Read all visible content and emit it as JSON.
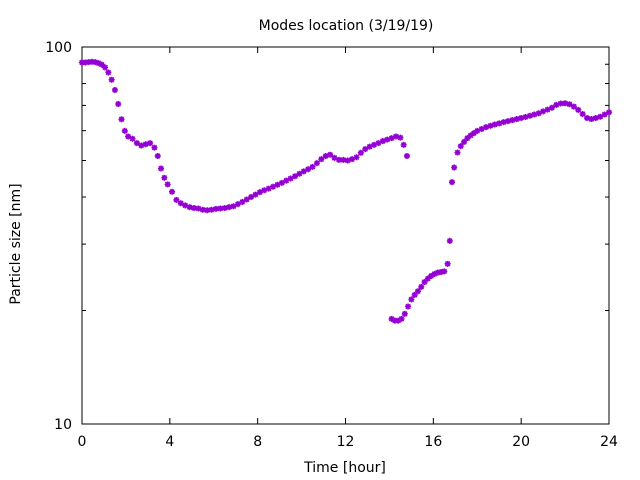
{
  "chart_data": {
    "type": "scatter",
    "title": "Modes location (3/19/19)",
    "xlabel": "Time [hour]",
    "ylabel": "Particle size [nm]",
    "xlim": [
      0,
      24
    ],
    "ylim": [
      10,
      100
    ],
    "y_scale": "log",
    "x_ticks": [
      0,
      4,
      8,
      12,
      16,
      20,
      24
    ],
    "x_tick_labels": [
      "0",
      "4",
      "8",
      "12",
      "16",
      "20",
      "24"
    ],
    "y_ticks": [
      10,
      100
    ],
    "y_tick_labels": [
      "10",
      "100"
    ],
    "grid": false,
    "marker_color": "#9400d3",
    "series": [
      {
        "points": [
          [
            0.0,
            91.0
          ],
          [
            0.15,
            91.0
          ],
          [
            0.3,
            91.2
          ],
          [
            0.45,
            91.4
          ],
          [
            0.6,
            91.2
          ],
          [
            0.75,
            90.6
          ],
          [
            0.9,
            89.8
          ],
          [
            1.05,
            88.3
          ],
          [
            1.2,
            85.6
          ],
          [
            1.35,
            81.9
          ],
          [
            1.5,
            76.9
          ],
          [
            1.65,
            70.6
          ],
          [
            1.8,
            64.3
          ],
          [
            1.95,
            59.9
          ],
          [
            2.1,
            57.9
          ],
          [
            2.3,
            57.1
          ],
          [
            2.5,
            55.6
          ],
          [
            2.7,
            54.8
          ],
          [
            2.9,
            55.2
          ],
          [
            3.1,
            55.6
          ],
          [
            3.3,
            54.1
          ],
          [
            3.45,
            51.4
          ],
          [
            3.6,
            47.6
          ],
          [
            3.75,
            45.0
          ],
          [
            3.9,
            43.2
          ],
          [
            4.1,
            41.3
          ],
          [
            4.3,
            39.3
          ],
          [
            4.5,
            38.5
          ],
          [
            4.7,
            38.0
          ],
          [
            4.9,
            37.6
          ],
          [
            5.1,
            37.4
          ],
          [
            5.3,
            37.3
          ],
          [
            5.5,
            37.0
          ],
          [
            5.7,
            36.9
          ],
          [
            5.9,
            37.0
          ],
          [
            6.1,
            37.2
          ],
          [
            6.3,
            37.3
          ],
          [
            6.5,
            37.4
          ],
          [
            6.7,
            37.6
          ],
          [
            6.9,
            37.8
          ],
          [
            7.1,
            38.3
          ],
          [
            7.3,
            38.8
          ],
          [
            7.5,
            39.4
          ],
          [
            7.7,
            40.0
          ],
          [
            7.9,
            40.6
          ],
          [
            8.1,
            41.2
          ],
          [
            8.3,
            41.7
          ],
          [
            8.5,
            42.1
          ],
          [
            8.7,
            42.6
          ],
          [
            8.9,
            43.1
          ],
          [
            9.1,
            43.6
          ],
          [
            9.3,
            44.2
          ],
          [
            9.5,
            44.8
          ],
          [
            9.7,
            45.4
          ],
          [
            9.9,
            46.1
          ],
          [
            10.1,
            46.8
          ],
          [
            10.3,
            47.4
          ],
          [
            10.5,
            48.1
          ],
          [
            10.7,
            49.2
          ],
          [
            10.9,
            50.4
          ],
          [
            11.1,
            51.4
          ],
          [
            11.3,
            51.8
          ],
          [
            11.5,
            50.8
          ],
          [
            11.7,
            50.2
          ],
          [
            11.9,
            50.2
          ],
          [
            12.1,
            50.0
          ],
          [
            12.3,
            50.4
          ],
          [
            12.5,
            51.0
          ],
          [
            12.7,
            52.4
          ],
          [
            12.9,
            53.6
          ],
          [
            13.1,
            54.4
          ],
          [
            13.3,
            55.0
          ],
          [
            13.5,
            55.6
          ],
          [
            13.7,
            56.3
          ],
          [
            13.9,
            56.8
          ],
          [
            14.1,
            57.3
          ],
          [
            14.3,
            57.9
          ],
          [
            14.5,
            57.5
          ],
          [
            14.65,
            55.0
          ],
          [
            14.8,
            51.4
          ],
          [
            14.1,
            19.0
          ],
          [
            14.25,
            18.8
          ],
          [
            14.4,
            18.8
          ],
          [
            14.55,
            19.0
          ],
          [
            14.7,
            19.6
          ],
          [
            14.85,
            20.5
          ],
          [
            15.0,
            21.4
          ],
          [
            15.15,
            22.0
          ],
          [
            15.3,
            22.5
          ],
          [
            15.45,
            23.1
          ],
          [
            15.6,
            23.8
          ],
          [
            15.75,
            24.3
          ],
          [
            15.9,
            24.7
          ],
          [
            16.05,
            25.0
          ],
          [
            16.2,
            25.2
          ],
          [
            16.35,
            25.3
          ],
          [
            16.5,
            25.4
          ],
          [
            16.65,
            26.6
          ],
          [
            16.75,
            30.6
          ],
          [
            16.85,
            43.8
          ],
          [
            16.95,
            47.9
          ],
          [
            17.1,
            52.5
          ],
          [
            17.25,
            54.6
          ],
          [
            17.4,
            56.0
          ],
          [
            17.55,
            57.3
          ],
          [
            17.7,
            58.3
          ],
          [
            17.85,
            59.1
          ],
          [
            18.0,
            59.9
          ],
          [
            18.2,
            60.6
          ],
          [
            18.4,
            61.3
          ],
          [
            18.6,
            61.8
          ],
          [
            18.8,
            62.3
          ],
          [
            19.0,
            62.7
          ],
          [
            19.2,
            63.2
          ],
          [
            19.4,
            63.6
          ],
          [
            19.6,
            64.0
          ],
          [
            19.8,
            64.4
          ],
          [
            20.0,
            64.8
          ],
          [
            20.2,
            65.2
          ],
          [
            20.4,
            65.7
          ],
          [
            20.6,
            66.2
          ],
          [
            20.8,
            66.7
          ],
          [
            21.0,
            67.5
          ],
          [
            21.2,
            68.2
          ],
          [
            21.4,
            69.0
          ],
          [
            21.6,
            70.2
          ],
          [
            21.8,
            70.8
          ],
          [
            22.0,
            70.9
          ],
          [
            22.2,
            70.5
          ],
          [
            22.4,
            69.5
          ],
          [
            22.6,
            68.1
          ],
          [
            22.8,
            66.4
          ],
          [
            23.0,
            64.8
          ],
          [
            23.2,
            64.4
          ],
          [
            23.4,
            64.8
          ],
          [
            23.6,
            65.3
          ],
          [
            23.8,
            66.2
          ],
          [
            24.0,
            67.1
          ]
        ]
      }
    ]
  }
}
